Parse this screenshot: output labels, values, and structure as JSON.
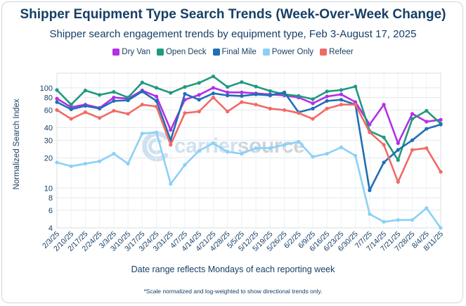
{
  "title": "Shipper Equipment Type Search Trends (Week-Over-Week Change)",
  "subtitle": "Shipper search engagement trends by equipment type, Feb 3-August 17, 2025",
  "watermark": {
    "text_a": "carrier",
    "text_b": "source"
  },
  "footnote": "*Scale normalized and log-weighted to show directional trends only.",
  "chart_data": {
    "type": "line",
    "title": "Shipper Equipment Type Search Trends (Week-Over-Week Change)",
    "subtitle": "Shipper search engagement trends by equipment type, Feb 3-August 17, 2025",
    "xlabel": "Date range reflects Mondays of each reporting week",
    "ylabel": "Normalized Search Index",
    "yscale": "log",
    "ylim": [
      4,
      140
    ],
    "yticks": [
      4,
      6,
      8,
      10,
      20,
      30,
      40,
      60,
      80,
      100
    ],
    "grid": true,
    "legend_position": "top-center",
    "categories": [
      "2/3/25",
      "2/10/25",
      "2/17/25",
      "2/24/25",
      "3/3/25",
      "3/10/25",
      "3/17/25",
      "3/24/25",
      "3/31/25",
      "4/7/25",
      "4/14/25",
      "4/21/25",
      "4/28/25",
      "5/5/25",
      "5/12/25",
      "5/19/25",
      "5/26/25",
      "6/2/25",
      "6/9/25",
      "6/16/25",
      "6/23/25",
      "6/30/25",
      "7/7/25",
      "7/14/25",
      "7/21/25",
      "7/28/25",
      "8/4/25",
      "8/11/25"
    ],
    "series": [
      {
        "name": "Dry Van",
        "color": "#b32fe8",
        "values": [
          78,
          64,
          68,
          63,
          80,
          78,
          94,
          82,
          38,
          76,
          85,
          100,
          90,
          90,
          88,
          86,
          84,
          80,
          70,
          82,
          86,
          72,
          43,
          68,
          28,
          55,
          46,
          48
        ]
      },
      {
        "name": "Open Deck",
        "color": "#209a7d",
        "values": [
          95,
          68,
          94,
          85,
          91,
          80,
          113,
          100,
          89,
          102,
          112,
          130,
          102,
          114,
          103,
          93,
          86,
          83,
          77,
          92,
          95,
          103,
          37,
          32,
          19,
          49,
          59,
          44
        ]
      },
      {
        "name": "Final Mile",
        "color": "#1f6fb5",
        "values": [
          72,
          61,
          66,
          62,
          74,
          75,
          92,
          74,
          30,
          87,
          76,
          88,
          84,
          83,
          86,
          84,
          90,
          57,
          62,
          74,
          76,
          68,
          9.5,
          18,
          24,
          30,
          39,
          43
        ]
      },
      {
        "name": "Power Only",
        "color": "#8cd0f7",
        "values": [
          18,
          16.5,
          17.5,
          18.5,
          22,
          17.5,
          35,
          36,
          11,
          17,
          23.5,
          28,
          23,
          22,
          25,
          25,
          27,
          29,
          20.5,
          22,
          25.5,
          21,
          5.5,
          4.6,
          4.8,
          4.8,
          6.3,
          4
        ]
      },
      {
        "name": "Refeer",
        "color": "#f06a66",
        "values": [
          60,
          49,
          57,
          50,
          59,
          55,
          68,
          65,
          27,
          56,
          58,
          80,
          58,
          72,
          68,
          62,
          60,
          56,
          49,
          62,
          68,
          68,
          36,
          27,
          11.5,
          24,
          25,
          14.5
        ]
      }
    ]
  }
}
